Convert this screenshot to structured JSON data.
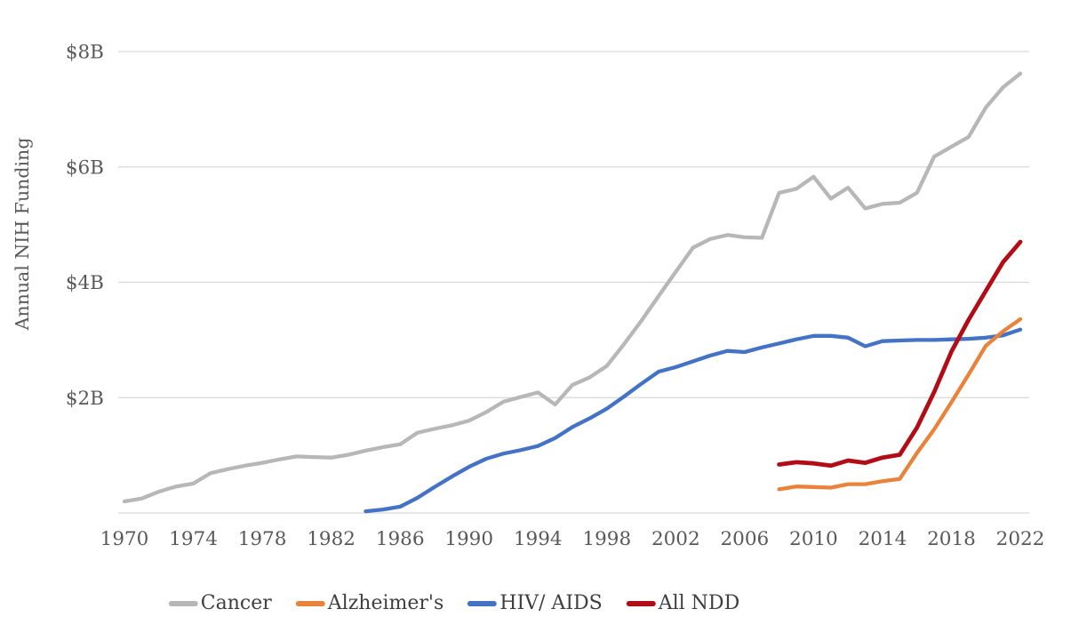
{
  "meta": {
    "background_color": "#ffffff",
    "gridline_color": "#d9d9d9",
    "tick_text_color": "#595959",
    "legend_text_color": "#3f3f3f"
  },
  "chart_data": {
    "type": "line",
    "title": "",
    "xlabel": "",
    "ylabel": "Annual NIH Funding",
    "units": "billions of dollars per year",
    "x_range": [
      1970,
      2022
    ],
    "ylim": [
      0,
      8
    ],
    "grid": "horizontal",
    "legend_position": "bottom",
    "y_ticks": [
      {
        "label": "$8B",
        "value": 8
      },
      {
        "label": "$6B",
        "value": 6
      },
      {
        "label": "$4B",
        "value": 4
      },
      {
        "label": "$2B",
        "value": 2
      }
    ],
    "x_ticks": [
      "1970",
      "1974",
      "1978",
      "1982",
      "1986",
      "1990",
      "1994",
      "1998",
      "2002",
      "2006",
      "2010",
      "2014",
      "2018",
      "2022"
    ],
    "series": [
      {
        "name": "Cancer",
        "color": "#b7b7b7",
        "start_year": 1970,
        "values": [
          0.2,
          0.25,
          0.37,
          0.46,
          0.51,
          0.69,
          0.76,
          0.82,
          0.87,
          0.93,
          0.98,
          0.97,
          0.96,
          1.01,
          1.08,
          1.14,
          1.19,
          1.39,
          1.46,
          1.52,
          1.6,
          1.75,
          1.93,
          2.01,
          2.09,
          1.88,
          2.22,
          2.35,
          2.55,
          2.93,
          3.33,
          3.76,
          4.18,
          4.6,
          4.75,
          4.82,
          4.78,
          4.77,
          5.55,
          5.62,
          5.83,
          5.45,
          5.64,
          5.28,
          5.36,
          5.38,
          5.55,
          6.18,
          6.35,
          6.52,
          7.03,
          7.38,
          7.62
        ]
      },
      {
        "name": "Alzheimer's",
        "color": "#e9833c",
        "start_year": 2008,
        "values": [
          0.41,
          0.46,
          0.45,
          0.44,
          0.5,
          0.5,
          0.55,
          0.59,
          1.04,
          1.45,
          1.92,
          2.4,
          2.9,
          3.15,
          3.36
        ]
      },
      {
        "name": "HIV/ AIDS",
        "color": "#4472c4",
        "start_year": 1984,
        "values": [
          0.03,
          0.06,
          0.11,
          0.26,
          0.45,
          0.63,
          0.8,
          0.94,
          1.03,
          1.09,
          1.16,
          1.3,
          1.49,
          1.64,
          1.81,
          2.02,
          2.24,
          2.45,
          2.53,
          2.63,
          2.73,
          2.81,
          2.79,
          2.87,
          2.94,
          3.01,
          3.07,
          3.07,
          3.04,
          2.89,
          2.98,
          2.99,
          3.0,
          3.0,
          3.01,
          3.02,
          3.04,
          3.08,
          3.18
        ]
      },
      {
        "name": "All NDD",
        "color": "#b20d16",
        "start_year": 2008,
        "values": [
          0.84,
          0.88,
          0.86,
          0.82,
          0.91,
          0.87,
          0.96,
          1.01,
          1.48,
          2.1,
          2.8,
          3.35,
          3.85,
          4.35,
          4.7
        ]
      }
    ]
  }
}
